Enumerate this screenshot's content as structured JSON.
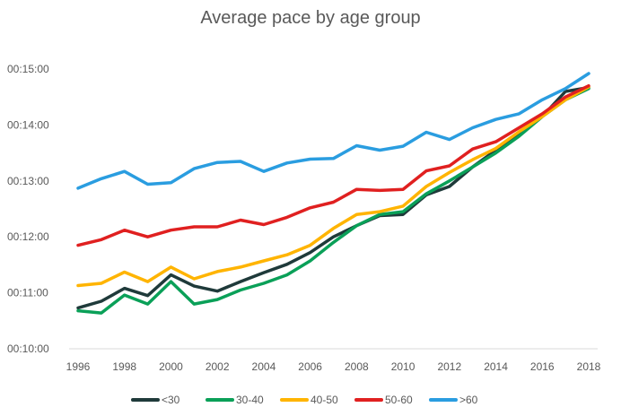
{
  "chart_data": {
    "type": "line",
    "title": "Average pace by age group",
    "xlabel": "",
    "ylabel": "",
    "x": [
      1996,
      1997,
      1998,
      1999,
      2000,
      2001,
      2002,
      2003,
      2004,
      2005,
      2006,
      2007,
      2008,
      2009,
      2010,
      2011,
      2012,
      2013,
      2014,
      2015,
      2016,
      2017,
      2018
    ],
    "x_tick_labels": [
      "1996",
      "1998",
      "2000",
      "2002",
      "2004",
      "2006",
      "2008",
      "2010",
      "2012",
      "2014",
      "2016",
      "2018"
    ],
    "y_unit": "minutes",
    "ylim": [
      10,
      15
    ],
    "y_ticks": [
      10,
      11,
      12,
      13,
      14,
      15
    ],
    "y_tick_labels": [
      "00:10:00",
      "00:11:00",
      "00:12:00",
      "00:13:00",
      "00:14:00",
      "00:15:00"
    ],
    "grid": "none",
    "legend_position": "bottom",
    "series": [
      {
        "name": "<30",
        "color": "#1f3a3a",
        "values": [
          10.73,
          10.85,
          11.08,
          10.95,
          11.32,
          11.12,
          11.03,
          11.2,
          11.36,
          11.51,
          11.72,
          12.0,
          12.2,
          12.38,
          12.4,
          12.75,
          12.9,
          13.25,
          13.55,
          13.82,
          14.15,
          14.6,
          14.67
        ]
      },
      {
        "name": "30-40",
        "color": "#0aa058",
        "values": [
          10.68,
          10.64,
          10.96,
          10.8,
          11.2,
          10.8,
          10.88,
          11.05,
          11.17,
          11.32,
          11.57,
          11.9,
          12.2,
          12.4,
          12.45,
          12.77,
          13.0,
          13.25,
          13.5,
          13.8,
          14.15,
          14.45,
          14.65
        ]
      },
      {
        "name": "40-50",
        "color": "#ffb400",
        "values": [
          11.13,
          11.17,
          11.37,
          11.2,
          11.46,
          11.25,
          11.38,
          11.46,
          11.57,
          11.68,
          11.85,
          12.15,
          12.4,
          12.45,
          12.55,
          12.9,
          13.15,
          13.38,
          13.58,
          13.88,
          14.15,
          14.45,
          14.68
        ]
      },
      {
        "name": "50-60",
        "color": "#e02020",
        "values": [
          11.85,
          11.95,
          12.12,
          12.0,
          12.12,
          12.18,
          12.18,
          12.3,
          12.22,
          12.35,
          12.52,
          12.62,
          12.85,
          12.83,
          12.85,
          13.18,
          13.27,
          13.57,
          13.7,
          13.95,
          14.2,
          14.5,
          14.7
        ]
      },
      {
        "name": ">60",
        "color": "#2a9de0",
        "values": [
          12.87,
          13.04,
          13.17,
          12.94,
          12.97,
          13.22,
          13.33,
          13.35,
          13.17,
          13.32,
          13.39,
          13.4,
          13.63,
          13.55,
          13.62,
          13.87,
          13.74,
          13.95,
          14.1,
          14.2,
          14.45,
          14.65,
          14.92
        ]
      }
    ]
  }
}
